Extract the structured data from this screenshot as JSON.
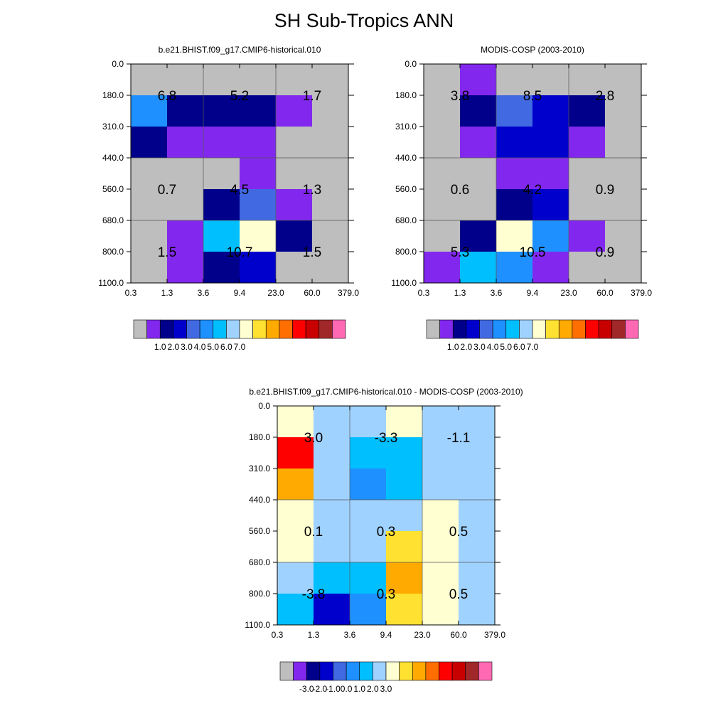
{
  "title": "SH Sub-Tropics ANN",
  "colors": {
    "frame": "#000000",
    "panel_palette": [
      "#bebebe",
      "#8228ee",
      "#00008b",
      "#0000cd",
      "#4169e1",
      "#1e90ff",
      "#00bfff",
      "#a0d2ff",
      "#ffffd2",
      "#ffe132",
      "#ffaa00",
      "#ff6e00",
      "#ff0000",
      "#c80000",
      "#a02828",
      "#ff69b4"
    ],
    "diff_palette": [
      "#bebebe",
      "#8228ee",
      "#00008b",
      "#0000cd",
      "#4169e1",
      "#1e90ff",
      "#00bfff",
      "#a0d2ff",
      "#ffffd2",
      "#ffe132",
      "#ffaa00",
      "#ff6e00",
      "#ff0000",
      "#c80000",
      "#a02828",
      "#ff69b4"
    ]
  },
  "chart_data": [
    {
      "type": "heatmap",
      "title": "b.e21.BHIST.f09_g17.CMIP6-historical.010",
      "x_ticks": [
        "0.3",
        "1.3",
        "3.6",
        "9.4",
        "23.0",
        "60.0",
        "379.0"
      ],
      "y_ticks": [
        "0.0",
        "180.0",
        "310.0",
        "440.0",
        "560.0",
        "680.0",
        "800.0",
        "1100.0"
      ],
      "cell_colors": [
        [
          0,
          0,
          0,
          0,
          0,
          0
        ],
        [
          5,
          2,
          2,
          2,
          1,
          0
        ],
        [
          2,
          1,
          1,
          1,
          0,
          0
        ],
        [
          0,
          0,
          0,
          1,
          0,
          0
        ],
        [
          0,
          0,
          2,
          4,
          1,
          0
        ],
        [
          0,
          1,
          6,
          8,
          2,
          0
        ],
        [
          0,
          1,
          2,
          3,
          0,
          0
        ]
      ],
      "labels": [
        [
          "6.8",
          "5.2",
          "1.7"
        ],
        [
          "0.7",
          "4.5",
          "1.3"
        ],
        [
          "1.5",
          "10.7",
          "1.5"
        ]
      ],
      "colorbar_labels": [
        "1.0",
        "2.0",
        "3.0",
        "4.0",
        "5.0",
        "6.0",
        "7.0"
      ]
    },
    {
      "type": "heatmap",
      "title": "MODIS-COSP (2003-2010)",
      "x_ticks": [
        "0.3",
        "1.3",
        "3.6",
        "9.4",
        "23.0",
        "60.0",
        "379.0"
      ],
      "y_ticks": [
        "0.0",
        "180.0",
        "310.0",
        "440.0",
        "560.0",
        "680.0",
        "800.0",
        "1100.0"
      ],
      "cell_colors": [
        [
          0,
          1,
          0,
          0,
          0,
          0
        ],
        [
          0,
          2,
          4,
          3,
          2,
          0
        ],
        [
          0,
          1,
          3,
          3,
          1,
          0
        ],
        [
          0,
          0,
          1,
          1,
          0,
          0
        ],
        [
          0,
          0,
          2,
          3,
          0,
          0
        ],
        [
          0,
          2,
          8,
          5,
          1,
          0
        ],
        [
          1,
          6,
          5,
          1,
          0,
          0
        ]
      ],
      "labels": [
        [
          "3.8",
          "8.5",
          "2.8"
        ],
        [
          "0.6",
          "4.2",
          "0.9"
        ],
        [
          "5.3",
          "10.5",
          "0.9"
        ]
      ],
      "colorbar_labels": [
        "1.0",
        "2.0",
        "3.0",
        "4.0",
        "5.0",
        "6.0",
        "7.0"
      ]
    },
    {
      "type": "heatmap",
      "title": "b.e21.BHIST.f09_g17.CMIP6-historical.010 - MODIS-COSP (2003-2010)",
      "x_ticks": [
        "0.3",
        "1.3",
        "3.6",
        "9.4",
        "23.0",
        "60.0",
        "379.0"
      ],
      "y_ticks": [
        "0.0",
        "180.0",
        "310.0",
        "440.0",
        "560.0",
        "680.0",
        "800.0",
        "1100.0"
      ],
      "cell_colors": [
        [
          8,
          7,
          7,
          8,
          7,
          7
        ],
        [
          12,
          7,
          6,
          6,
          7,
          7
        ],
        [
          10,
          7,
          5,
          6,
          7,
          7
        ],
        [
          8,
          7,
          7,
          7,
          8,
          7
        ],
        [
          8,
          7,
          7,
          9,
          8,
          7
        ],
        [
          7,
          6,
          6,
          10,
          8,
          7
        ],
        [
          6,
          3,
          5,
          9,
          8,
          7
        ]
      ],
      "labels": [
        [
          "3.0",
          "-3.3",
          "-1.1"
        ],
        [
          "0.1",
          "0.3",
          "0.5"
        ],
        [
          "-3.8",
          "0.3",
          "0.5"
        ]
      ],
      "colorbar_labels": [
        "-3.0",
        "-2.0",
        "-1.0",
        "0.0",
        "1.0",
        "2.0",
        "3.0"
      ]
    }
  ]
}
